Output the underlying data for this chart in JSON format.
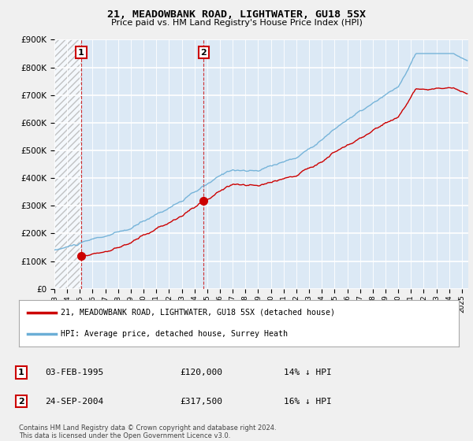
{
  "title": "21, MEADOWBANK ROAD, LIGHTWATER, GU18 5SX",
  "subtitle": "Price paid vs. HM Land Registry's House Price Index (HPI)",
  "legend_line1": "21, MEADOWBANK ROAD, LIGHTWATER, GU18 5SX (detached house)",
  "legend_line2": "HPI: Average price, detached house, Surrey Heath",
  "footnote": "Contains HM Land Registry data © Crown copyright and database right 2024.\nThis data is licensed under the Open Government Licence v3.0.",
  "sale1_label": "1",
  "sale1_date": "03-FEB-1995",
  "sale1_price": "£120,000",
  "sale1_hpi": "14% ↓ HPI",
  "sale2_label": "2",
  "sale2_date": "24-SEP-2004",
  "sale2_price": "£317,500",
  "sale2_hpi": "16% ↓ HPI",
  "hpi_color": "#6baed6",
  "price_color": "#cc0000",
  "background_color": "#f0f0f0",
  "plot_bg_color": "#dce9f5",
  "ylim": [
    0,
    900000
  ],
  "yticks": [
    0,
    100000,
    200000,
    300000,
    400000,
    500000,
    600000,
    700000,
    800000,
    900000
  ],
  "sale1_x": 1995.1,
  "sale1_y": 120000,
  "sale2_x": 2004.73,
  "sale2_y": 317500,
  "xmin": 1993,
  "xmax": 2025.5
}
